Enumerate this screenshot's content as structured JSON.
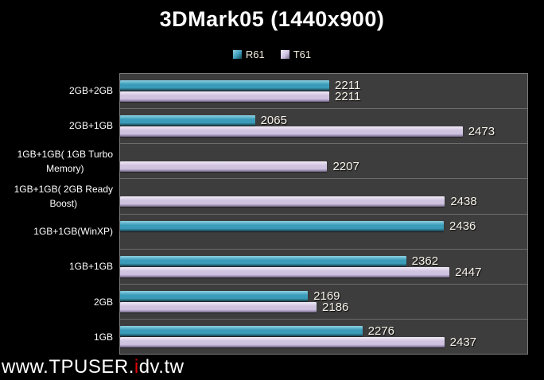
{
  "title": "3DMark05 (1440x900)",
  "legend": {
    "position": "top",
    "items": [
      {
        "label": "R61"
      },
      {
        "label": "T61"
      }
    ]
  },
  "watermark": {
    "prefix": "www.TPUSER.",
    "highlight": "i",
    "suffix": "dv.tw",
    "highlight_color": "#e00505",
    "text_color": "#ffffff"
  },
  "colors": {
    "background": "#000000",
    "plot_background": "#3d3d3d",
    "separator_line": "#6b6b6b",
    "plot_border": "#7c7c7c",
    "value_label": "#f7f3ea",
    "category_label": "#ffffff"
  },
  "chart_data": {
    "type": "bar",
    "orientation": "horizontal",
    "title": "3DMark05 (1440x900)",
    "xlabel": "",
    "ylabel": "",
    "xlim": [
      1800,
      2600
    ],
    "grid": "category separator lines only, no value gridlines",
    "legend_position": "top",
    "value_labels": true,
    "categories": [
      "2GB+2GB",
      "2GB+1GB",
      "1GB+1GB( 1GB Turbo\nMemory)",
      "1GB+1GB( 2GB Ready\nBoost)",
      "1GB+1GB(WinXP)",
      "1GB+1GB",
      "2GB",
      "1GB"
    ],
    "series": [
      {
        "name": "R61",
        "color": "#3b9cba",
        "color_light": "#8fd2e2",
        "color_dark": "#16434f",
        "values": [
          2211,
          2065,
          null,
          null,
          2436,
          2362,
          2169,
          2276
        ]
      },
      {
        "name": "T61",
        "color": "#cfc3e0",
        "color_light": "#f2ecf8",
        "color_dark": "#76688c",
        "values": [
          2211,
          2473,
          2207,
          2438,
          null,
          2447,
          2186,
          2437
        ]
      }
    ]
  }
}
